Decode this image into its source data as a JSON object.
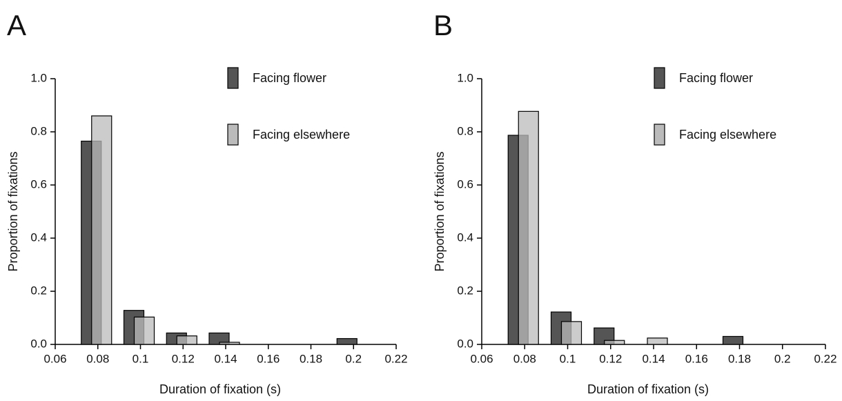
{
  "chart_data": [
    {
      "type": "bar",
      "panel_label": "A",
      "xlabel": "Duration of fixation (s)",
      "ylabel": "Proportion of fixations",
      "x": [
        0.08,
        0.1,
        0.12,
        0.14,
        0.16,
        0.18,
        0.2
      ],
      "series": [
        {
          "name": "Facing flower",
          "color": "#555555",
          "values": [
            0.765,
            0.128,
            0.043,
            0.043,
            0,
            0,
            0.022
          ]
        },
        {
          "name": "Facing elsewhere",
          "color": "#bbbbbb",
          "values": [
            0.86,
            0.103,
            0.032,
            0.008,
            0,
            0,
            0
          ]
        }
      ],
      "xlim": [
        0.06,
        0.22
      ],
      "xticks": [
        0.06,
        0.08,
        0.1,
        0.12,
        0.14,
        0.16,
        0.18,
        0.2,
        0.22
      ],
      "ylim": [
        0,
        1
      ],
      "yticks": [
        {
          "value": 0,
          "label": "0.0"
        },
        0.2,
        0.4,
        0.6,
        0.8,
        {
          "value": 1,
          "label": "1.0"
        }
      ]
    },
    {
      "type": "bar",
      "panel_label": "B",
      "xlabel": "Duration of fixation (s)",
      "ylabel": "Proportion of fixations",
      "x": [
        0.08,
        0.1,
        0.12,
        0.14,
        0.16,
        0.18,
        0.2
      ],
      "series": [
        {
          "name": "Facing flower",
          "color": "#555555",
          "values": [
            0.787,
            0.122,
            0.062,
            0,
            0,
            0.03,
            0
          ]
        },
        {
          "name": "Facing elsewhere",
          "color": "#bbbbbb",
          "values": [
            0.877,
            0.086,
            0.015,
            0.024,
            0,
            0,
            0
          ]
        }
      ],
      "xlim": [
        0.06,
        0.22
      ],
      "xticks": [
        0.06,
        0.08,
        0.1,
        0.12,
        0.14,
        0.16,
        0.18,
        0.2,
        0.22
      ],
      "ylim": [
        0,
        1
      ],
      "yticks": [
        {
          "value": 0,
          "label": "0.0"
        },
        0.2,
        0.4,
        0.6,
        0.8,
        {
          "value": 1,
          "label": "1.0"
        }
      ]
    }
  ]
}
